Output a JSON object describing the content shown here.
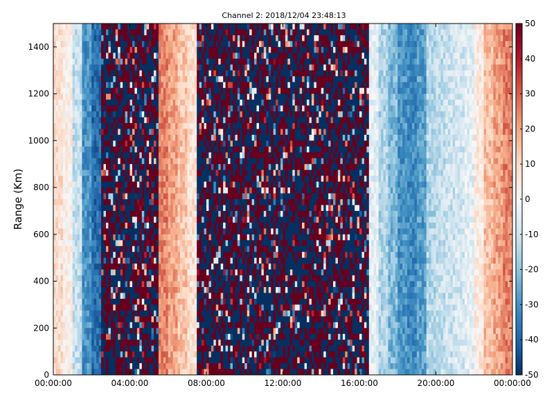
{
  "chart_data": {
    "type": "heatmap",
    "title": "Channel 2: 2018/12/04 23:48:13",
    "xlabel": "",
    "ylabel": "Range (Km)",
    "x_range": [
      "00:00:00",
      "24:00:00"
    ],
    "y_range": [
      0,
      1500
    ],
    "x_ticks": [
      "00:00:00",
      "04:00:00",
      "08:00:00",
      "12:00:00",
      "16:00:00",
      "20:00:00",
      "00:00:00"
    ],
    "y_ticks": [
      0,
      200,
      400,
      600,
      800,
      1000,
      1200,
      1400
    ],
    "colorbar": {
      "colormap": "RdBu_r",
      "range": [
        -50,
        50
      ],
      "ticks": [
        -50,
        -40,
        -30,
        -20,
        -10,
        0,
        10,
        20,
        30,
        40,
        50
      ],
      "low_color": "#053061",
      "mid_color": "#f7f7f7",
      "high_color": "#67001f"
    },
    "columns_hours": [
      0,
      0.5,
      1,
      1.5,
      2,
      2.5,
      3,
      3.5,
      4,
      4.5,
      5,
      5.5,
      6,
      6.5,
      7,
      7.5,
      8,
      8.5,
      9,
      9.5,
      10,
      10.5,
      11,
      11.5,
      12,
      12.5,
      13,
      13.5,
      14,
      14.5,
      15,
      15.5,
      16,
      16.5,
      17,
      17.5,
      18,
      18.5,
      19,
      19.5,
      20,
      20.5,
      21,
      21.5,
      22,
      22.5,
      23,
      23.5
    ],
    "column_mean_values": [
      8,
      3,
      -12,
      -30,
      -38,
      0,
      0,
      0,
      0,
      0,
      0,
      25,
      20,
      14,
      8,
      0,
      0,
      0,
      0,
      0,
      0,
      0,
      0,
      0,
      0,
      0,
      0,
      0,
      0,
      0,
      0,
      0,
      0,
      -5,
      -15,
      -22,
      -30,
      -32,
      -28,
      -15,
      -12,
      -10,
      -8,
      -5,
      5,
      15,
      20,
      25
    ],
    "column_noisy": [
      false,
      false,
      false,
      false,
      false,
      true,
      true,
      true,
      true,
      true,
      true,
      false,
      false,
      false,
      false,
      true,
      true,
      true,
      true,
      true,
      true,
      true,
      true,
      true,
      true,
      true,
      true,
      true,
      true,
      true,
      true,
      true,
      true,
      false,
      false,
      false,
      false,
      false,
      false,
      false,
      false,
      false,
      false,
      false,
      false,
      false,
      false,
      false
    ]
  }
}
